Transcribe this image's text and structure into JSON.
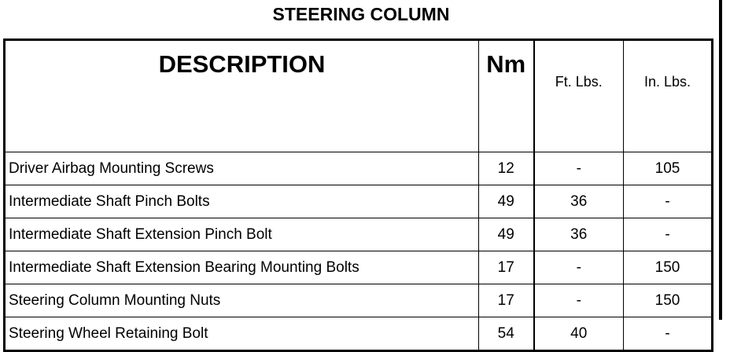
{
  "title": "STEERING COLUMN",
  "headers": {
    "description": "DESCRIPTION",
    "nm": "Nm",
    "ft_lbs": "Ft. Lbs.",
    "in_lbs": "In. Lbs."
  },
  "rows": [
    {
      "description": "Driver Airbag Mounting Screws",
      "nm": "12",
      "ft_lbs": "-",
      "in_lbs": "105"
    },
    {
      "description": "Intermediate Shaft Pinch Bolts",
      "nm": "49",
      "ft_lbs": "36",
      "in_lbs": "-"
    },
    {
      "description": "Intermediate Shaft Extension Pinch Bolt",
      "nm": "49",
      "ft_lbs": "36",
      "in_lbs": "-"
    },
    {
      "description": "Intermediate Shaft Extension Bearing Mounting Bolts",
      "nm": "17",
      "ft_lbs": "-",
      "in_lbs": "150"
    },
    {
      "description": "Steering Column Mounting Nuts",
      "nm": "17",
      "ft_lbs": "-",
      "in_lbs": "150"
    },
    {
      "description": "Steering Wheel Retaining Bolt",
      "nm": "54",
      "ft_lbs": "40",
      "in_lbs": "-"
    }
  ]
}
